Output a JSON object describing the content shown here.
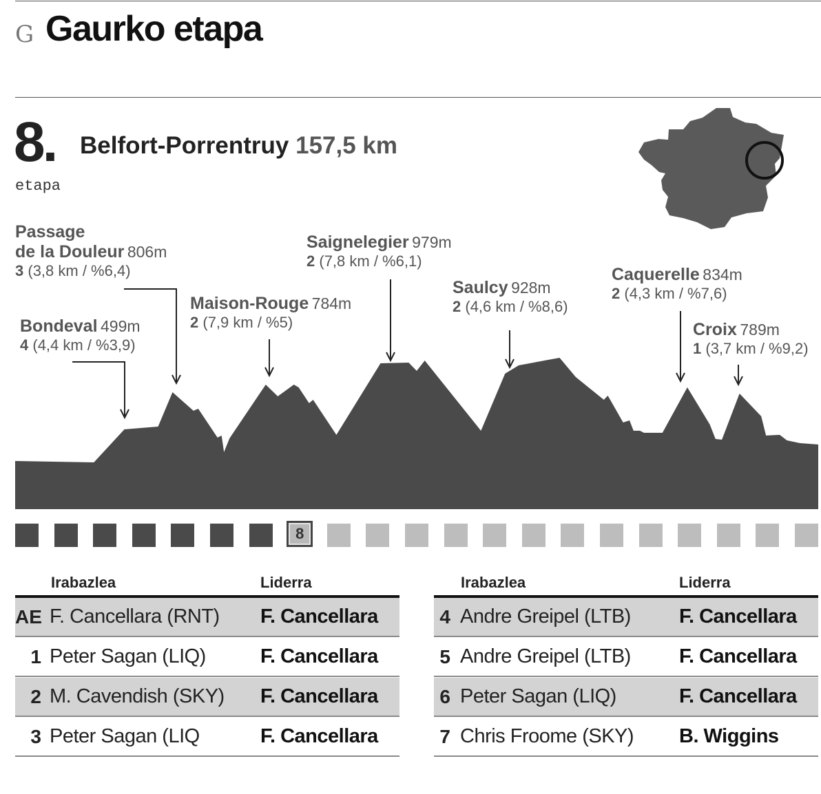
{
  "header": {
    "initial": "G",
    "title": "Gaurko etapa"
  },
  "stage": {
    "number": "8.",
    "word": "etapa",
    "route": "Belfort-Porrentruy",
    "distance": "157,5 km"
  },
  "chart_data": {
    "type": "area",
    "title": "",
    "profile": [
      [
        0,
        670
      ],
      [
        0.098,
        672
      ],
      [
        0.136,
        624
      ],
      [
        0.178,
        620
      ],
      [
        0.196,
        570
      ],
      [
        0.222,
        597
      ],
      [
        0.228,
        594
      ],
      [
        0.252,
        636
      ],
      [
        0.257,
        633
      ],
      [
        0.26,
        657
      ],
      [
        0.267,
        637
      ],
      [
        0.312,
        559
      ],
      [
        0.327,
        576
      ],
      [
        0.347,
        559
      ],
      [
        0.353,
        563
      ],
      [
        0.366,
        586
      ],
      [
        0.371,
        581
      ],
      [
        0.4,
        632
      ],
      [
        0.455,
        528
      ],
      [
        0.49,
        527
      ],
      [
        0.5,
        539
      ],
      [
        0.51,
        524
      ],
      [
        0.58,
        626
      ],
      [
        0.61,
        543
      ],
      [
        0.627,
        531
      ],
      [
        0.659,
        524
      ],
      [
        0.678,
        520
      ],
      [
        0.698,
        548
      ],
      [
        0.733,
        581
      ],
      [
        0.738,
        575
      ],
      [
        0.757,
        614
      ],
      [
        0.765,
        611
      ],
      [
        0.77,
        626
      ],
      [
        0.778,
        626
      ],
      [
        0.783,
        629
      ],
      [
        0.806,
        629
      ],
      [
        0.837,
        563
      ],
      [
        0.865,
        617
      ],
      [
        0.872,
        638
      ],
      [
        0.88,
        639
      ],
      [
        0.902,
        572
      ],
      [
        0.929,
        605
      ],
      [
        0.935,
        633
      ],
      [
        0.952,
        632
      ],
      [
        0.961,
        640
      ],
      [
        0.977,
        644
      ],
      [
        1,
        646
      ]
    ],
    "climbs": [
      {
        "name": "Bondeval",
        "altitude": "499m",
        "category": "4",
        "detail": "(4,4 km / %3,9)"
      },
      {
        "name_lines": [
          "Passage",
          "de la Douleur"
        ],
        "altitude": "806m",
        "category": "3",
        "detail": "(3,8 km / %6,4)"
      },
      {
        "name": "Maison-Rouge",
        "altitude": "784m",
        "category": "2",
        "detail": "(7,9 km / %5)"
      },
      {
        "name": "Saignelegier",
        "altitude": "979m",
        "category": "2",
        "detail": "(7,8 km / %6,1)"
      },
      {
        "name": "Saulcy",
        "altitude": "928m",
        "category": "2",
        "detail": "(4,6 km / %8,6)"
      },
      {
        "name": "Caquerelle",
        "altitude": "834m",
        "category": "2",
        "detail": "(4,3 km / %7,6)"
      },
      {
        "name": "Croix",
        "altitude": "789m",
        "category": "1",
        "detail": "(3,7 km / %9,2)"
      }
    ],
    "stages_total": 21,
    "current_stage": 8,
    "current_stage_label": "8"
  },
  "colors": {
    "profile": "#4a4a4a",
    "map": "#5a5a5a",
    "text_secondary": "#555555",
    "row_shade": "#d3d3d3",
    "done": "#4a4a4a",
    "todo": "#bdbdbd"
  },
  "tables": [
    {
      "headers": {
        "winner": "Irabazlea",
        "leader": "Liderra"
      },
      "rows": [
        {
          "num": "AE",
          "winner": "F. Cancellara (RNT)",
          "leader": "F. Cancellara"
        },
        {
          "num": "1",
          "winner": "Peter Sagan (LIQ)",
          "leader": "F. Cancellara"
        },
        {
          "num": "2",
          "winner": "M. Cavendish (SKY)",
          "leader": "F. Cancellara"
        },
        {
          "num": "3",
          "winner": "Peter Sagan (LIQ",
          "leader": "F. Cancellara"
        }
      ]
    },
    {
      "headers": {
        "winner": "Irabazlea",
        "leader": "Liderra"
      },
      "rows": [
        {
          "num": "4",
          "winner": "Andre Greipel (LTB)",
          "leader": "F. Cancellara"
        },
        {
          "num": "5",
          "winner": "Andre Greipel (LTB)",
          "leader": "F. Cancellara"
        },
        {
          "num": "6",
          "winner": "Peter Sagan (LIQ)",
          "leader": "F. Cancellara"
        },
        {
          "num": "7",
          "winner": "Chris Froome (SKY)",
          "leader": "B. Wiggins"
        }
      ]
    }
  ]
}
